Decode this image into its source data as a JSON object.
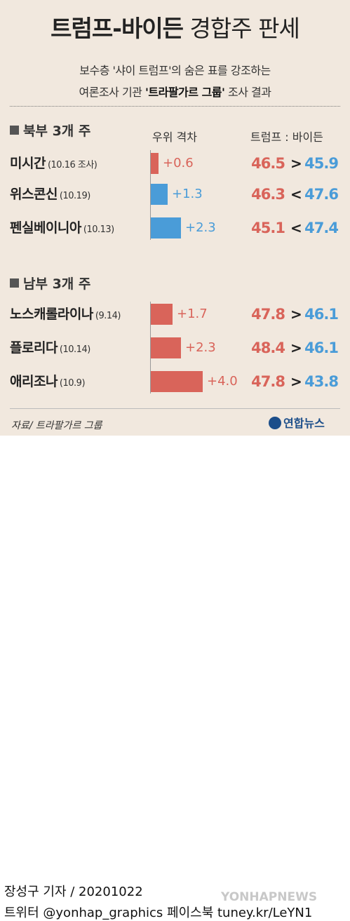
{
  "title_bold": "트럼프-바이든",
  "title_light": "경합주 판세",
  "subtitle_line1": "보수층 '샤이 트럼프'의 숨은 표를 강조하는",
  "subtitle_line2_a": "여론조사 기관 ",
  "subtitle_line2_b": "'트라팔가르 그룹'",
  "subtitle_line2_c": " 조사 결과",
  "header_gap": "우위 격차",
  "header_trump_biden": "트럼프 : 바이든",
  "north_label": "북부 3개 주",
  "south_label": "남부 3개 주",
  "source": "자료/ 트라팔가르 그룹",
  "logo_text": "연합뉴스",
  "byline": "장성구 기자 / 20201022",
  "social": "트위터 @yonhap_graphics  페이스북 tuney.kr/LeYN1",
  "watermark": "YONHAPNEWS",
  "colors": {
    "trump": "#d9645a",
    "biden": "#4a9cd8",
    "background": "#f1e8de"
  },
  "chart_data": {
    "type": "bar",
    "title": "트럼프-바이든 경합주 판세",
    "groups": [
      "북부 3개 주",
      "남부 3개 주"
    ],
    "categories": [
      "미시간",
      "위스콘신",
      "펜실베이니아",
      "노스캐롤라이나",
      "플로리다",
      "애리조나"
    ],
    "survey_dates": [
      "(10.16 조사)",
      "(10.19)",
      "(10.13)",
      "(9.14)",
      "(10.14)",
      "(10.9)"
    ],
    "gap_labels": [
      "+0.6",
      "+1.3",
      "+2.3",
      "+1.7",
      "+2.3",
      "+4.0"
    ],
    "gap_values": [
      0.6,
      1.3,
      2.3,
      1.7,
      2.3,
      4.0
    ],
    "leader": [
      "trump",
      "biden",
      "biden",
      "trump",
      "trump",
      "trump"
    ],
    "trump": [
      "46.5",
      "46.3",
      "45.1",
      "47.8",
      "48.4",
      "47.8"
    ],
    "biden": [
      "45.9",
      "47.6",
      "47.4",
      "46.1",
      "46.1",
      "43.8"
    ],
    "comparison": [
      ">",
      "<",
      "<",
      ">",
      ">",
      ">"
    ]
  }
}
